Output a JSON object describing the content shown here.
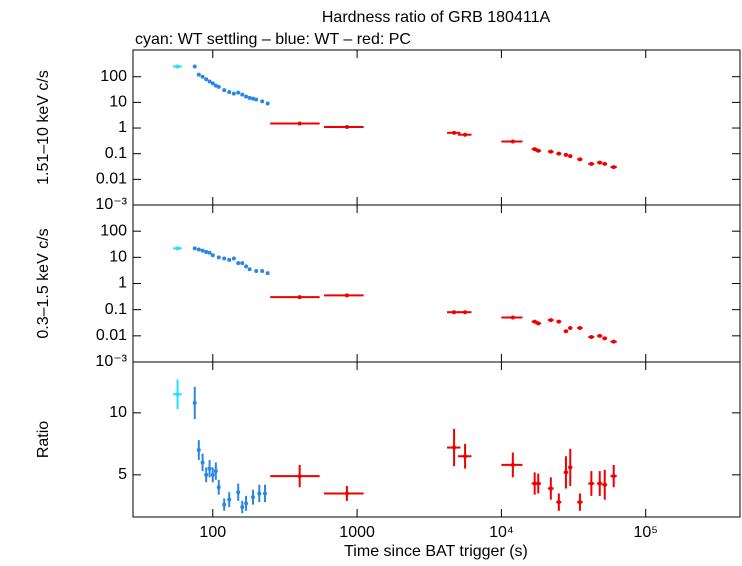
{
  "chart_data": [
    {
      "type": "scatter",
      "title": "Hardness ratio of GRB 180411A",
      "subtitle": "cyan: WT settling – blue: WT – red: PC",
      "y_label": "1.51–10 keV c/s",
      "x_log": true,
      "y_log": true,
      "xlim": [
        28,
        450000
      ],
      "xticks": [
        100,
        1000,
        10000,
        100000
      ],
      "ylim": [
        0.001,
        1100
      ],
      "yticks": [
        100,
        10,
        1,
        0.1,
        0.01,
        {
          "value": 0.001,
          "label": "10⁻³"
        }
      ],
      "series": [
        {
          "name": "WT settling",
          "color": "#22e0ff",
          "x": [
            57
          ],
          "xerr": [
            4
          ],
          "values": [
            250
          ]
        },
        {
          "name": "WT",
          "color": "#2a86e6",
          "x": [
            75,
            80,
            85,
            90,
            95,
            100,
            105,
            110,
            120,
            130,
            140,
            150,
            160,
            170,
            180,
            190,
            200,
            220,
            240
          ],
          "values": [
            250,
            120,
            100,
            80,
            65,
            55,
            45,
            40,
            30,
            25,
            22,
            24,
            20,
            17,
            15,
            14,
            13,
            11,
            9
          ]
        },
        {
          "name": "PC",
          "color": "#ee0000",
          "x": [
            400,
            850,
            4700,
            5600,
            12000,
            17000,
            18000,
            22000,
            25000,
            28000,
            30000,
            35000,
            42000,
            48000,
            52000,
            60000
          ],
          "xerr": [
            150,
            260,
            500,
            600,
            2000,
            800,
            800,
            1000,
            1000,
            1000,
            1000,
            1500,
            2000,
            2000,
            2000,
            3000
          ],
          "values": [
            1.5,
            1.1,
            0.65,
            0.55,
            0.3,
            0.15,
            0.13,
            0.12,
            0.1,
            0.09,
            0.08,
            0.06,
            0.04,
            0.045,
            0.04,
            0.03
          ]
        }
      ]
    },
    {
      "type": "scatter",
      "y_label": "0.3–1.5 keV c/s",
      "x_log": true,
      "y_log": true,
      "xlim": [
        28,
        450000
      ],
      "xticks": [
        100,
        1000,
        10000,
        100000
      ],
      "ylim": [
        0.001,
        1000
      ],
      "yticks": [
        100,
        10,
        1,
        0.1,
        0.01,
        {
          "value": 0.001,
          "label": "10⁻³"
        }
      ],
      "series": [
        {
          "name": "WT settling",
          "color": "#22e0ff",
          "x": [
            57
          ],
          "xerr": [
            4
          ],
          "values": [
            22
          ]
        },
        {
          "name": "WT",
          "color": "#2a86e6",
          "x": [
            75,
            80,
            85,
            90,
            95,
            100,
            110,
            120,
            130,
            140,
            150,
            160,
            170,
            180,
            200,
            220,
            240
          ],
          "values": [
            22,
            20,
            18,
            16,
            15,
            12,
            10,
            9,
            8,
            9,
            6,
            6,
            4.5,
            3.5,
            3,
            3,
            2.5
          ]
        },
        {
          "name": "PC",
          "color": "#ee0000",
          "x": [
            400,
            850,
            4700,
            5600,
            12000,
            17000,
            18000,
            22000,
            25000,
            28000,
            30000,
            35000,
            42000,
            48000,
            52000,
            60000
          ],
          "xerr": [
            150,
            260,
            500,
            600,
            2000,
            800,
            800,
            1000,
            1000,
            1000,
            1000,
            1500,
            2000,
            2000,
            2000,
            3000
          ],
          "values": [
            0.3,
            0.35,
            0.08,
            0.08,
            0.05,
            0.035,
            0.03,
            0.04,
            0.035,
            0.015,
            0.02,
            0.02,
            0.009,
            0.01,
            0.008,
            0.006
          ]
        }
      ]
    },
    {
      "type": "scatter",
      "y_label": "Ratio",
      "x_label": "Time since BAT trigger (s)",
      "x_log": true,
      "y_log": false,
      "xlim": [
        28,
        450000
      ],
      "xticks": [
        100,
        1000,
        {
          "value": 10000,
          "label": "10⁴"
        },
        {
          "value": 100000,
          "label": "10⁵"
        }
      ],
      "ylim": [
        1.6,
        14.1
      ],
      "yticks": [
        10,
        5
      ],
      "series": [
        {
          "name": "WT settling",
          "color": "#22e0ff",
          "x": [
            57
          ],
          "xerr": [
            4
          ],
          "values": [
            11.5
          ],
          "errors": [
            1.2
          ]
        },
        {
          "name": "WT",
          "color": "#2a86e6",
          "x": [
            75,
            80,
            85,
            90,
            95,
            100,
            105,
            110,
            120,
            130,
            150,
            160,
            170,
            190,
            210,
            230
          ],
          "values": [
            10.8,
            7,
            6,
            5,
            5.5,
            5,
            5.3,
            4,
            2.6,
            3,
            3.6,
            2.4,
            2.7,
            3.2,
            3.5,
            3.5
          ],
          "errors": [
            1.3,
            0.8,
            0.7,
            0.6,
            0.7,
            0.6,
            0.7,
            0.6,
            0.5,
            0.6,
            0.7,
            0.5,
            0.6,
            0.6,
            0.7,
            0.7
          ]
        },
        {
          "name": "PC",
          "color": "#ee0000",
          "x": [
            400,
            850,
            4700,
            5600,
            12000,
            17000,
            18000,
            22000,
            25000,
            28000,
            30000,
            35000,
            42000,
            48000,
            52000,
            60000
          ],
          "xerr": [
            150,
            260,
            500,
            600,
            2000,
            800,
            800,
            1000,
            1000,
            1000,
            1000,
            1500,
            2000,
            2000,
            2000,
            3000
          ],
          "values": [
            4.9,
            3.5,
            7.2,
            6.5,
            5.8,
            4.3,
            4.3,
            3.9,
            2.8,
            5.2,
            5.6,
            2.8,
            4.3,
            4.3,
            4.2,
            4.9
          ],
          "errors": [
            0.9,
            0.6,
            1.5,
            1.0,
            1.0,
            0.9,
            0.8,
            0.9,
            0.7,
            1.3,
            1.5,
            0.7,
            1.0,
            1.0,
            1.2,
            0.9
          ]
        }
      ]
    }
  ]
}
